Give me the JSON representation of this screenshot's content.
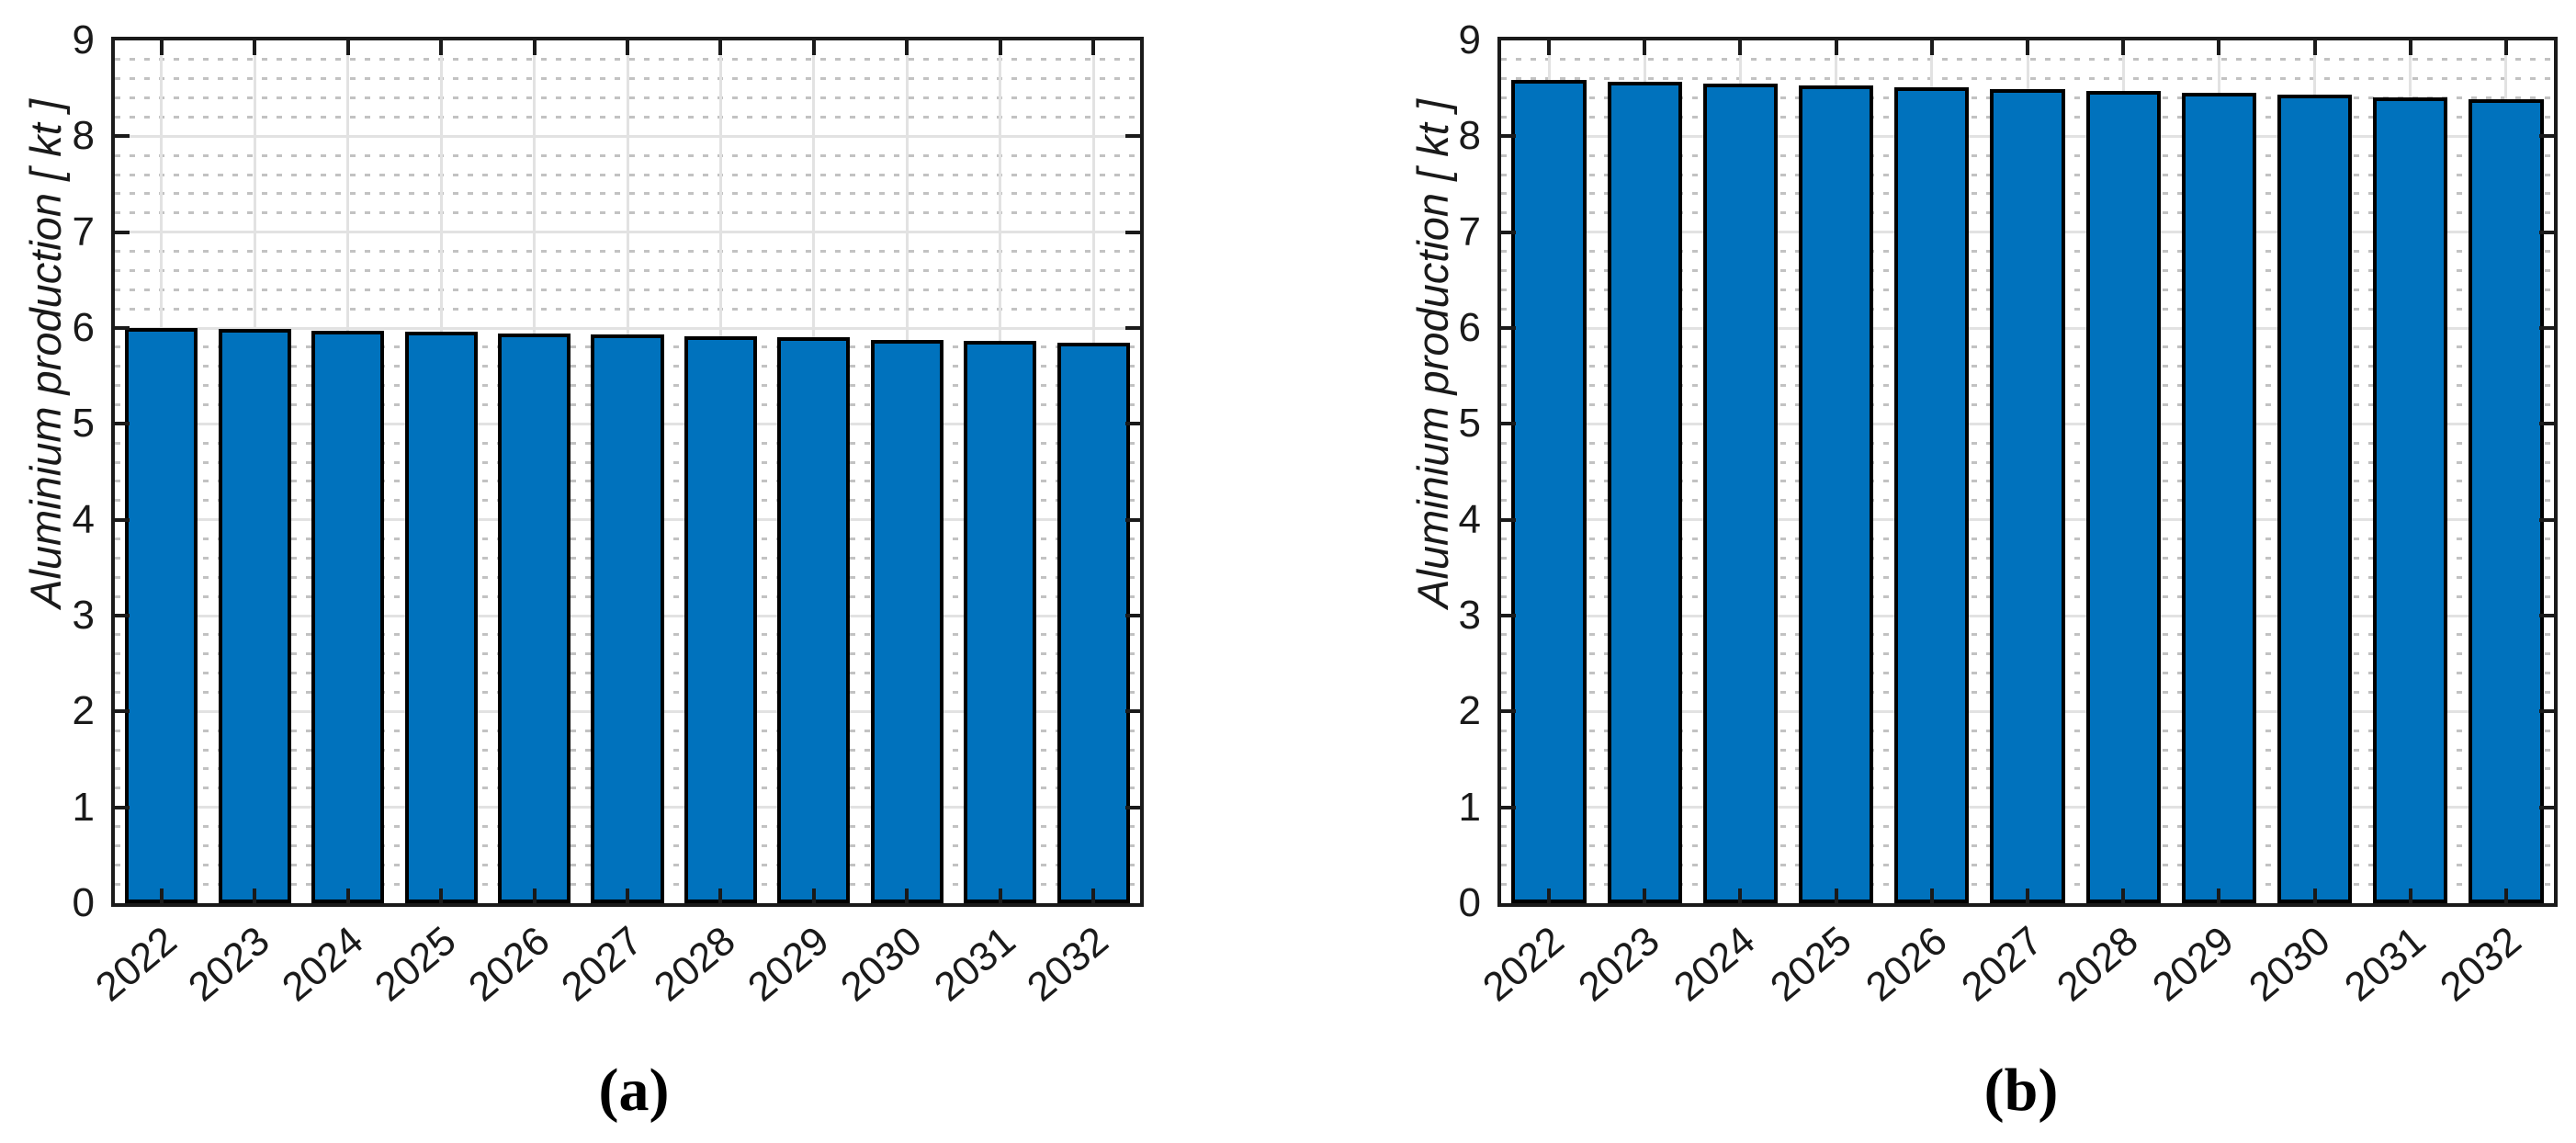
{
  "figure": {
    "background": "#ffffff",
    "panels": [
      "(a)",
      "(b)"
    ]
  },
  "chart_data": [
    {
      "id": "a",
      "type": "bar",
      "caption": "(a)",
      "title": "",
      "xlabel": "",
      "ylabel": "Aluminium production [ kt ]",
      "categories": [
        "2022",
        "2023",
        "2024",
        "2025",
        "2026",
        "2027",
        "2028",
        "2029",
        "2030",
        "2031",
        "2032"
      ],
      "values": [
        6.0,
        5.99,
        5.97,
        5.96,
        5.94,
        5.93,
        5.91,
        5.9,
        5.88,
        5.87,
        5.85
      ],
      "ylim": [
        0,
        9
      ],
      "ytick_step": 1,
      "yticks": [
        "0",
        "1",
        "2",
        "3",
        "4",
        "5",
        "6",
        "7",
        "8",
        "9"
      ],
      "yminor_step": 0.2,
      "grid": "on",
      "minor_grid": "on",
      "legend": null,
      "bar_color": "#0072BD",
      "bar_edge_color": "#000000",
      "grid_color": "#e2e2e2",
      "minor_grid_color": "#c2c2c2",
      "axis_color": "#1a1a1a",
      "xtick_rotation_deg": -40
    },
    {
      "id": "b",
      "type": "bar",
      "caption": "(b)",
      "title": "",
      "xlabel": "",
      "ylabel": "Aluminium production [ kt ]",
      "categories": [
        "2022",
        "2023",
        "2024",
        "2025",
        "2026",
        "2027",
        "2028",
        "2029",
        "2030",
        "2031",
        "2032"
      ],
      "values": [
        8.59,
        8.57,
        8.55,
        8.53,
        8.51,
        8.49,
        8.47,
        8.45,
        8.43,
        8.41,
        8.39
      ],
      "ylim": [
        0,
        9
      ],
      "ytick_step": 1,
      "yticks": [
        "0",
        "1",
        "2",
        "3",
        "4",
        "5",
        "6",
        "7",
        "8",
        "9"
      ],
      "yminor_step": 0.2,
      "grid": "on",
      "minor_grid": "on",
      "legend": null,
      "bar_color": "#0072BD",
      "bar_edge_color": "#000000",
      "grid_color": "#e2e2e2",
      "minor_grid_color": "#c2c2c2",
      "axis_color": "#1a1a1a",
      "xtick_rotation_deg": -40
    }
  ]
}
